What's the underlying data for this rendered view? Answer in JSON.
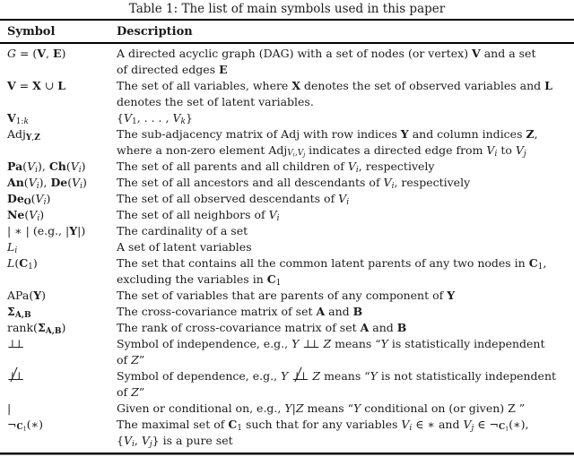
{
  "title": "Table 1: The list of main symbols used in this paper",
  "table": {
    "headers": [
      "Symbol",
      "Description"
    ],
    "rows": [
      {
        "symbol": "<span class='cal'>G</span> = (<b>V</b>, <b>E</b>)",
        "description": "A directed acyclic graph (DAG) with a set of nodes (or vertex) <b>V</b> and a set<br>of directed edges <b>E</b>"
      },
      {
        "symbol": "<b>V</b> = <b>X</b> ∪ <b>L</b>",
        "description": "The set of all variables, where <b>X</b> denotes the set of observed variables and <b>L</b><br>denotes the set of latent variables."
      },
      {
        "symbol": "<b>V</b><sub>1:<i>k</i></sub>",
        "description": "{<i>V</i><sub>1</sub>, . . . , <i>V</i><sub><i>k</i></sub>}"
      },
      {
        "symbol": "Adj<sub><b>Y</b>,<b>Z</b></sub>",
        "description": "The sub-adjacency matrix of Adj with row indices <b>Y</b> and column indices <b>Z</b>,<br>where a non-zero element Adj<sub><i>V</i><sub><i>i</i></sub>,<i>V</i><sub><i>j</i></sub></sub> indicates a directed edge from <i>V</i><sub><i>i</i></sub> to <i>V</i><sub><i>j</i></sub>"
      },
      {
        "symbol": "<b>Pa</b>(<i>V</i><sub><i>i</i></sub>), <b>Ch</b>(<i>V</i><sub><i>i</i></sub>)",
        "description": "The set of all parents and all children of <i>V</i><sub><i>i</i></sub>, respectively"
      },
      {
        "symbol": "<b>An</b>(<i>V</i><sub><i>i</i></sub>), <b>De</b>(<i>V</i><sub><i>i</i></sub>)",
        "description": "The set of all ancestors and all descendants of <i>V</i><sub><i>i</i></sub>, respectively"
      },
      {
        "symbol": "<b>De<sub>O</sub></b>(<i>V</i><sub><i>i</i></sub>)",
        "description": "The set of all observed descendants of <i>V</i><sub><i>i</i></sub>"
      },
      {
        "symbol": "<b>Ne</b>(<i>V</i><sub><i>i</i></sub>)",
        "description": "The set of all neighbors of <i>V</i><sub><i>i</i></sub>"
      },
      {
        "symbol": "| ∗ | (e.g., |<b>Y</b>|)",
        "description": "The cardinality of a set"
      },
      {
        "symbol": "<span class='cal'>L</span><sub><i>i</i></sub>",
        "description": "A set of latent variables"
      },
      {
        "symbol": "<i>L</i>(<b>C</b><sub>1</sub>)",
        "description": "The set that contains all the common latent parents of any two nodes in <b>C</b><sub>1</sub>,<br>excluding the variables in <b>C</b><sub>1</sub>"
      },
      {
        "symbol": "APa(<b>Y</b>)",
        "description": "The set of variables that are parents of any component of <b>Y</b>"
      },
      {
        "symbol": "<b>Σ<sub>A,B</sub></b>",
        "description": "The cross-covariance matrix of set <b>A</b> and <b>B</b>"
      },
      {
        "symbol": "rank(<b>Σ<sub>A,B</sub></b>)",
        "description": "The rank of cross-covariance matrix of set <b>A</b> and <b>B</b>"
      },
      {
        "symbol": "<span class='indep'>⊥⊥</span>",
        "description": "Symbol of independence, e.g., <i>Y</i> <span class='indep'>⊥⊥</span> <i>Z</i> means “<i>Y</i> is statistically independent<br>of <i>Z</i>”"
      },
      {
        "symbol": "<span class='indep dep'>⊥⊥</span>",
        "description": "Symbol of dependence, e.g., <i>Y</i> <span class='indep dep'>⊥⊥</span> <i>Z</i> means “<i>Y</i> is not statistically independent<br>of <i>Z</i>”"
      },
      {
        "symbol": "|",
        "description": "Given or conditional on, e.g., <i>Y</i>|<i>Z</i> means “<i>Y</i> conditional on (or given) Z ”"
      },
      {
        "symbol": "¬<sub><b>C</b><sub>1</sub></sub>(∗)",
        "description": "The maximal set of <b>C</b><sub>1</sub> such that for any variables <i>V</i><sub><i>i</i></sub> ∈ ∗ and <i>V</i><sub><i>j</i></sub> ∈ ¬<sub><b>C</b><sub>1</sub></sub>(∗),<br>{<i>V</i><sub><i>i</i></sub>, <i>V</i><sub><i>j</i></sub>} is a pure set"
      }
    ]
  }
}
